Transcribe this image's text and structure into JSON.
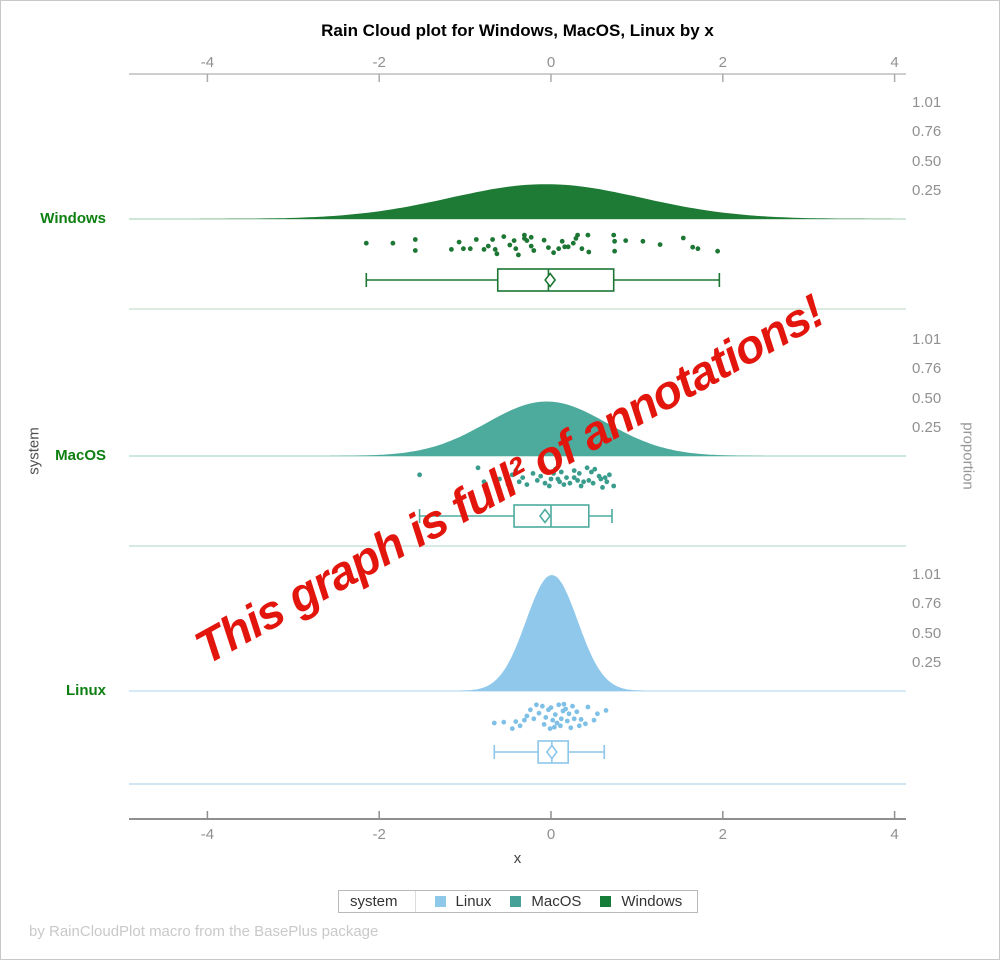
{
  "title": "Rain Cloud plot for Windows, MacOS, Linux by x",
  "footer": "by RainCloudPlot macro from the BasePlus package",
  "annotation": {
    "text": "This graph is full² of annotations!",
    "color": "#e3160e"
  },
  "axes": {
    "x": {
      "label": "x",
      "ticks": [
        "-4",
        "-2",
        "0",
        "2",
        "4"
      ],
      "tick_values": [
        -4,
        -2,
        0,
        2,
        4
      ]
    },
    "y": {
      "label": "system"
    },
    "y2": {
      "label": "proportion",
      "tick_labels": [
        "1.01",
        "0.76",
        "0.50",
        "0.25"
      ],
      "tick_values": [
        1.01,
        0.76,
        0.5,
        0.25
      ]
    }
  },
  "legend": {
    "title": "system",
    "items": [
      {
        "label": "Linux",
        "color": "#8ec9ea"
      },
      {
        "label": "MacOS",
        "color": "#46a298"
      },
      {
        "label": "Windows",
        "color": "#157d37"
      }
    ]
  },
  "chart_data": {
    "type": "raincloud",
    "xlabel": "x",
    "ylabel": "system",
    "y2label": "proportion",
    "x_range": [
      -4.9,
      4.1
    ],
    "proportion_range": [
      0,
      1.01
    ],
    "series": [
      {
        "name": "Windows",
        "fill": "#1e7b35",
        "point_color": "#1c7634",
        "box_color": "#1c7634",
        "baseline_color": "#cfe5d6",
        "separator_color": "#dcebe0",
        "density": {
          "mean": -0.06,
          "sd": 1.12,
          "peak_proportion": 0.3
        },
        "box": {
          "min": -2.15,
          "q1": -0.62,
          "median": -0.03,
          "mean": -0.01,
          "q3": 0.73,
          "max": 1.96
        },
        "points": [
          [
            -2.15,
            0.42
          ],
          [
            -1.84,
            0.42
          ],
          [
            -1.58,
            0.25
          ],
          [
            -1.58,
            0.75
          ],
          [
            -1.16,
            0.7
          ],
          [
            -1.07,
            0.37
          ],
          [
            -1.02,
            0.67
          ],
          [
            -0.94,
            0.67
          ],
          [
            -0.87,
            0.25
          ],
          [
            -0.78,
            0.7
          ],
          [
            -0.73,
            0.55
          ],
          [
            -0.68,
            0.25
          ],
          [
            -0.65,
            0.7
          ],
          [
            -0.63,
            0.9
          ],
          [
            -0.55,
            0.12
          ],
          [
            -0.48,
            0.5
          ],
          [
            -0.43,
            0.3
          ],
          [
            -0.41,
            0.67
          ],
          [
            -0.38,
            0.95
          ],
          [
            -0.31,
            0.2
          ],
          [
            -0.31,
            0.05
          ],
          [
            -0.28,
            0.3
          ],
          [
            -0.23,
            0.15
          ],
          [
            -0.23,
            0.55
          ],
          [
            -0.2,
            0.75
          ],
          [
            -0.08,
            0.28
          ],
          [
            -0.03,
            0.62
          ],
          [
            0.03,
            0.85
          ],
          [
            0.09,
            0.67
          ],
          [
            0.13,
            0.33
          ],
          [
            0.16,
            0.58
          ],
          [
            0.2,
            0.58
          ],
          [
            0.26,
            0.42
          ],
          [
            0.29,
            0.2
          ],
          [
            0.31,
            0.05
          ],
          [
            0.36,
            0.67
          ],
          [
            0.43,
            0.05
          ],
          [
            0.44,
            0.82
          ],
          [
            0.73,
            0.05
          ],
          [
            0.74,
            0.33
          ],
          [
            0.74,
            0.78
          ],
          [
            0.87,
            0.3
          ],
          [
            1.07,
            0.33
          ],
          [
            1.27,
            0.48
          ],
          [
            1.54,
            0.18
          ],
          [
            1.65,
            0.6
          ],
          [
            1.71,
            0.67
          ],
          [
            1.94,
            0.78
          ]
        ]
      },
      {
        "name": "MacOS",
        "fill": "#4dab9e",
        "point_color": "#3a9c8d",
        "box_color": "#4dab9e",
        "baseline_color": "#cde7e1",
        "separator_color": "#d6eae4",
        "density": {
          "mean": -0.05,
          "sd": 0.7,
          "peak_proportion": 0.47
        },
        "box": {
          "min": -1.53,
          "q1": -0.43,
          "median": 0.0,
          "mean": -0.07,
          "q3": 0.44,
          "max": 0.71
        },
        "points": [
          [
            -1.53,
            0.35
          ],
          [
            -0.85,
            0.1
          ],
          [
            -0.78,
            0.6
          ],
          [
            -0.6,
            0.5
          ],
          [
            -0.5,
            0.7
          ],
          [
            -0.45,
            0.35
          ],
          [
            -0.41,
            0.2
          ],
          [
            -0.37,
            0.6
          ],
          [
            -0.33,
            0.45
          ],
          [
            -0.28,
            0.7
          ],
          [
            -0.21,
            0.3
          ],
          [
            -0.16,
            0.55
          ],
          [
            -0.12,
            0.4
          ],
          [
            -0.07,
            0.65
          ],
          [
            -0.02,
            0.75
          ],
          [
            0,
            0.5
          ],
          [
            0.03,
            0.3
          ],
          [
            0.05,
            0.15
          ],
          [
            0.08,
            0.5
          ],
          [
            0.1,
            0.6
          ],
          [
            0.12,
            0.25
          ],
          [
            0.15,
            0.7
          ],
          [
            0.18,
            0.45
          ],
          [
            0.22,
            0.65
          ],
          [
            0.27,
            0.2
          ],
          [
            0.27,
            0.45
          ],
          [
            0.31,
            0.55
          ],
          [
            0.33,
            0.3
          ],
          [
            0.35,
            0.75
          ],
          [
            0.38,
            0.6
          ],
          [
            0.42,
            0.1
          ],
          [
            0.44,
            0.55
          ],
          [
            0.47,
            0.25
          ],
          [
            0.49,
            0.65
          ],
          [
            0.51,
            0.15
          ],
          [
            0.56,
            0.4
          ],
          [
            0.58,
            0.5
          ],
          [
            0.6,
            0.8
          ],
          [
            0.63,
            0.45
          ],
          [
            0.65,
            0.6
          ],
          [
            0.68,
            0.35
          ],
          [
            0.73,
            0.75
          ]
        ]
      },
      {
        "name": "Linux",
        "fill": "#8fc8eb",
        "point_color": "#7fc0e6",
        "box_color": "#8cc6ea",
        "baseline_color": "#d6eaf7",
        "separator_color": "#d2e5f2",
        "density": {
          "mean": 0.01,
          "sd": 0.3,
          "peak_proportion": 1.0
        },
        "box": {
          "min": -0.66,
          "q1": -0.15,
          "median": 0.01,
          "mean": 0.01,
          "q3": 0.2,
          "max": 0.62
        },
        "points": [
          [
            -0.66,
            0.75
          ],
          [
            -0.55,
            0.72
          ],
          [
            -0.45,
            0.95
          ],
          [
            -0.41,
            0.7
          ],
          [
            -0.36,
            0.85
          ],
          [
            -0.31,
            0.65
          ],
          [
            -0.28,
            0.5
          ],
          [
            -0.24,
            0.28
          ],
          [
            -0.2,
            0.6
          ],
          [
            -0.17,
            0.1
          ],
          [
            -0.14,
            0.4
          ],
          [
            -0.1,
            0.15
          ],
          [
            -0.08,
            0.8
          ],
          [
            -0.06,
            0.55
          ],
          [
            -0.03,
            0.28
          ],
          [
            -0.01,
            0.95
          ],
          [
            0,
            0.2
          ],
          [
            0.02,
            0.65
          ],
          [
            0.04,
            0.9
          ],
          [
            0.05,
            0.45
          ],
          [
            0.07,
            0.75
          ],
          [
            0.09,
            0.1
          ],
          [
            0.11,
            0.85
          ],
          [
            0.12,
            0.6
          ],
          [
            0.14,
            0.32
          ],
          [
            0.15,
            0.08
          ],
          [
            0.17,
            0.25
          ],
          [
            0.19,
            0.68
          ],
          [
            0.21,
            0.42
          ],
          [
            0.23,
            0.92
          ],
          [
            0.25,
            0.15
          ],
          [
            0.27,
            0.6
          ],
          [
            0.3,
            0.35
          ],
          [
            0.33,
            0.85
          ],
          [
            0.35,
            0.62
          ],
          [
            0.4,
            0.78
          ],
          [
            0.43,
            0.18
          ],
          [
            0.5,
            0.65
          ],
          [
            0.54,
            0.42
          ],
          [
            0.64,
            0.3
          ]
        ]
      }
    ]
  }
}
